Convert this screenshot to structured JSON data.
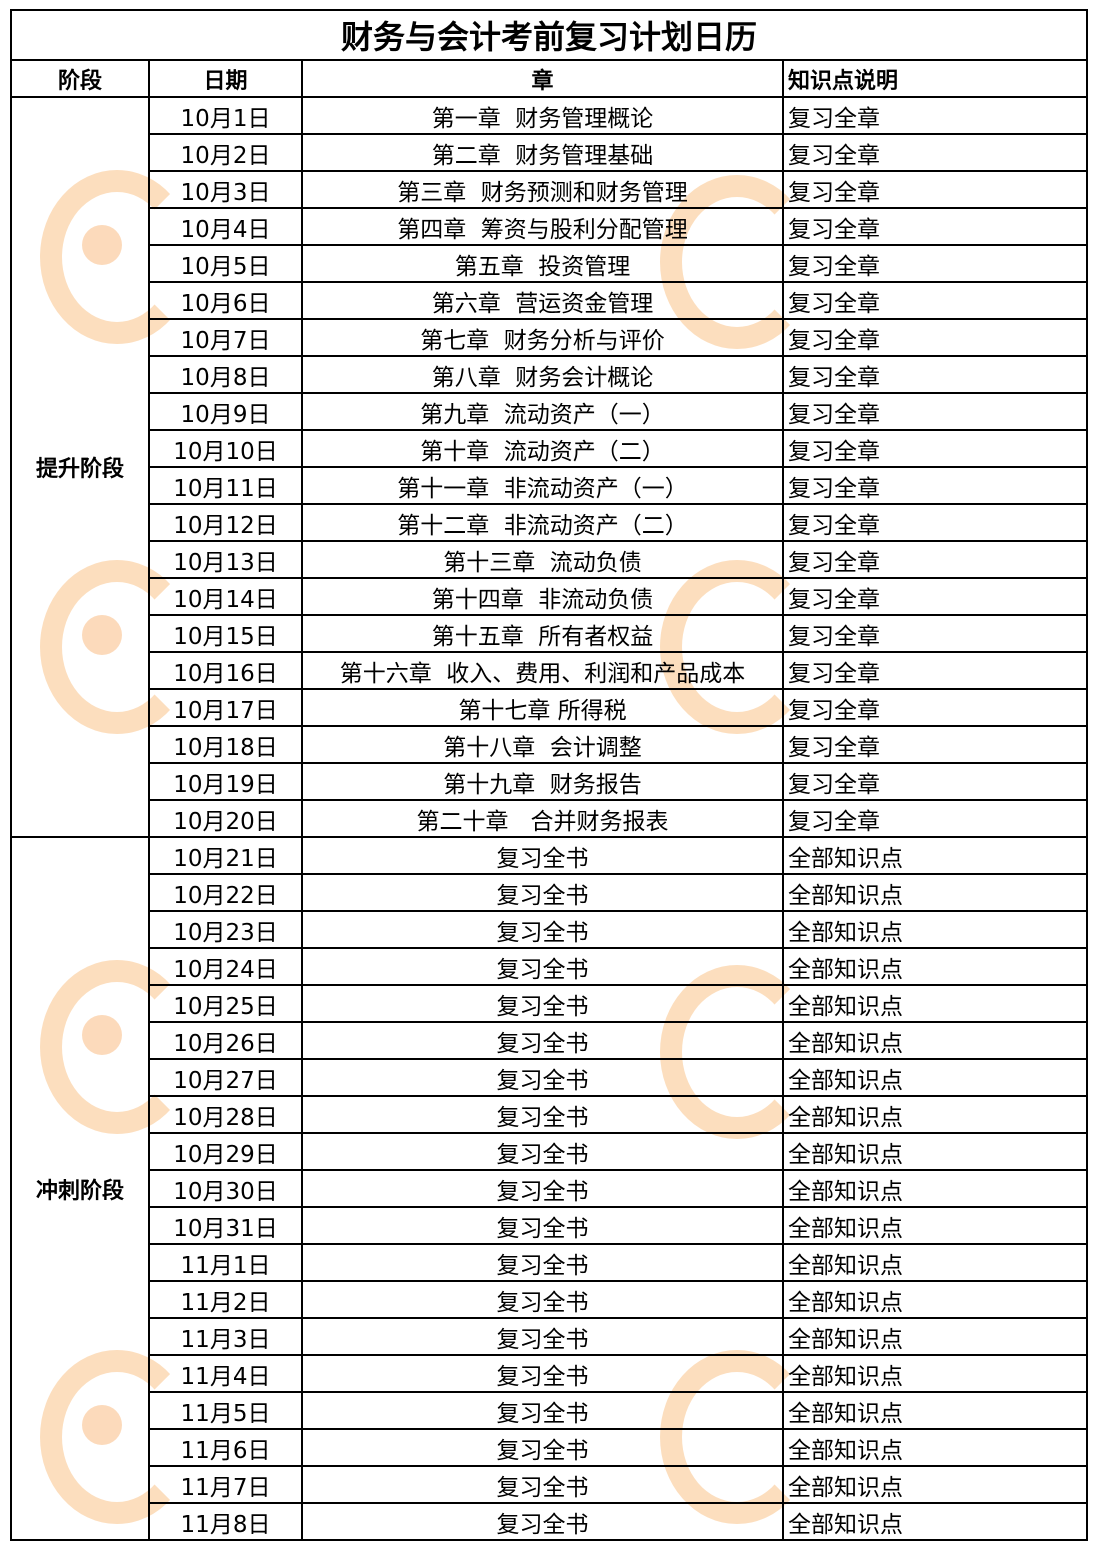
{
  "title": "财务与会计考前复习计划日历",
  "headers": {
    "phase": "阶段",
    "date": "日期",
    "chapter": "章",
    "note": "知识点说明"
  },
  "phases": [
    {
      "name": "提升阶段",
      "rows": [
        {
          "date": "10月1日",
          "chapter": "第一章  财务管理概论",
          "note": "复习全章"
        },
        {
          "date": "10月2日",
          "chapter": "第二章  财务管理基础",
          "note": "复习全章"
        },
        {
          "date": "10月3日",
          "chapter": "第三章  财务预测和财务管理",
          "note": "复习全章"
        },
        {
          "date": "10月4日",
          "chapter": "第四章  筹资与股利分配管理",
          "note": "复习全章"
        },
        {
          "date": "10月5日",
          "chapter": "第五章  投资管理",
          "note": "复习全章"
        },
        {
          "date": "10月6日",
          "chapter": "第六章  营运资金管理",
          "note": "复习全章"
        },
        {
          "date": "10月7日",
          "chapter": "第七章  财务分析与评价",
          "note": "复习全章"
        },
        {
          "date": "10月8日",
          "chapter": "第八章  财务会计概论",
          "note": "复习全章"
        },
        {
          "date": "10月9日",
          "chapter": "第九章  流动资产（一）",
          "note": "复习全章"
        },
        {
          "date": "10月10日",
          "chapter": "第十章  流动资产（二）",
          "note": "复习全章"
        },
        {
          "date": "10月11日",
          "chapter": "第十一章  非流动资产（一）",
          "note": "复习全章"
        },
        {
          "date": "10月12日",
          "chapter": "第十二章  非流动资产（二）",
          "note": "复习全章"
        },
        {
          "date": "10月13日",
          "chapter": "第十三章  流动负债",
          "note": "复习全章"
        },
        {
          "date": "10月14日",
          "chapter": "第十四章  非流动负债",
          "note": "复习全章"
        },
        {
          "date": "10月15日",
          "chapter": "第十五章  所有者权益",
          "note": "复习全章"
        },
        {
          "date": "10月16日",
          "chapter": "第十六章  收入、费用、利润和产品成本",
          "note": "复习全章"
        },
        {
          "date": "10月17日",
          "chapter": "第十七章 所得税",
          "note": "复习全章"
        },
        {
          "date": "10月18日",
          "chapter": "第十八章  会计调整",
          "note": "复习全章"
        },
        {
          "date": "10月19日",
          "chapter": "第十九章  财务报告",
          "note": "复习全章"
        },
        {
          "date": "10月20日",
          "chapter": "第二十章   合并财务报表",
          "note": "复习全章"
        }
      ]
    },
    {
      "name": "冲刺阶段",
      "rows": [
        {
          "date": "10月21日",
          "chapter": "复习全书",
          "note": "全部知识点"
        },
        {
          "date": "10月22日",
          "chapter": "复习全书",
          "note": "全部知识点"
        },
        {
          "date": "10月23日",
          "chapter": "复习全书",
          "note": "全部知识点"
        },
        {
          "date": "10月24日",
          "chapter": "复习全书",
          "note": "全部知识点"
        },
        {
          "date": "10月25日",
          "chapter": "复习全书",
          "note": "全部知识点"
        },
        {
          "date": "10月26日",
          "chapter": "复习全书",
          "note": "全部知识点"
        },
        {
          "date": "10月27日",
          "chapter": "复习全书",
          "note": "全部知识点"
        },
        {
          "date": "10月28日",
          "chapter": "复习全书",
          "note": "全部知识点"
        },
        {
          "date": "10月29日",
          "chapter": "复习全书",
          "note": "全部知识点"
        },
        {
          "date": "10月30日",
          "chapter": "复习全书",
          "note": "全部知识点"
        },
        {
          "date": "10月31日",
          "chapter": "复习全书",
          "note": "全部知识点"
        },
        {
          "date": "11月1日",
          "chapter": "复习全书",
          "note": "全部知识点"
        },
        {
          "date": "11月2日",
          "chapter": "复习全书",
          "note": "全部知识点"
        },
        {
          "date": "11月3日",
          "chapter": "复习全书",
          "note": "全部知识点"
        },
        {
          "date": "11月4日",
          "chapter": "复习全书",
          "note": "全部知识点"
        },
        {
          "date": "11月5日",
          "chapter": "复习全书",
          "note": "全部知识点"
        },
        {
          "date": "11月6日",
          "chapter": "复习全书",
          "note": "全部知识点"
        },
        {
          "date": "11月7日",
          "chapter": "复习全书",
          "note": "全部知识点"
        },
        {
          "date": "11月8日",
          "chapter": "复习全书",
          "note": "全部知识点"
        }
      ]
    }
  ],
  "watermark_color": "#f5a046"
}
